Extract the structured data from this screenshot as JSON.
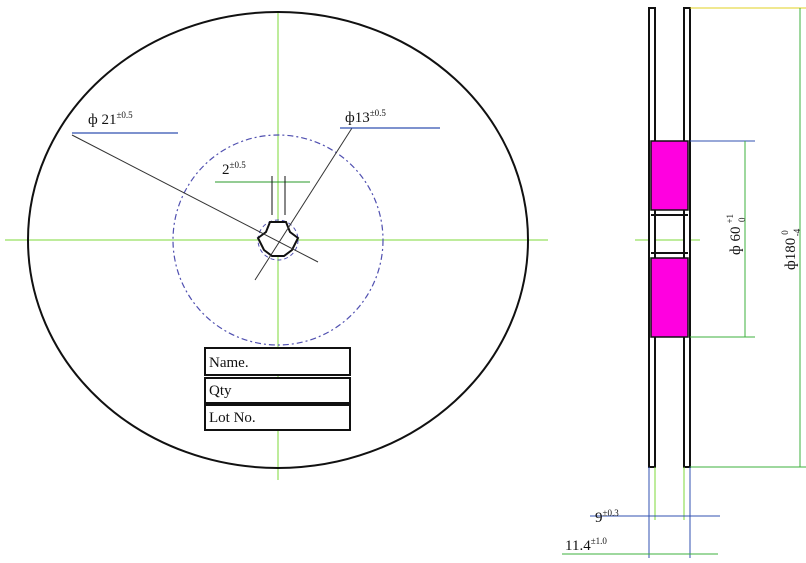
{
  "front_view": {
    "dimensions": [
      {
        "label": "ф 21",
        "tolerance": "±0.5"
      },
      {
        "label": "ф13",
        "tolerance": "±0.5"
      },
      {
        "label": "2",
        "tolerance": "±0.5"
      }
    ]
  },
  "label_table": {
    "rows": [
      "Name.",
      "Qty",
      "Lot No."
    ]
  },
  "side_view": {
    "dimensions": [
      {
        "label": "ф 60",
        "upper": "+1",
        "lower": "0"
      },
      {
        "label": "ф180",
        "upper": "0",
        "lower": "-4"
      },
      {
        "label": "9",
        "tolerance": "±0.3"
      },
      {
        "label": "11.4",
        "tolerance": "±1.0"
      }
    ]
  }
}
